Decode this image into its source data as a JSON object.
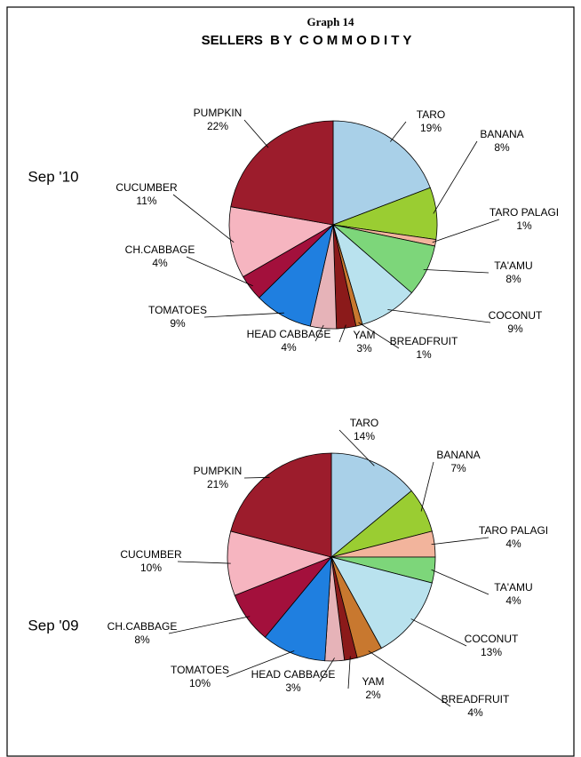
{
  "header": {
    "graph": "Graph 14",
    "title": "SELLERS  B Y  C O M M O D I T Y"
  },
  "chart_data": [
    {
      "type": "pie",
      "title": "Sep '10",
      "categories": [
        "TARO",
        "BANANA",
        "TARO PALAGI",
        "TA'AMU",
        "COCONUT",
        "BREADFRUIT",
        "YAM",
        "HEAD CABBAGE",
        "TOMATOES",
        "CH.CABBAGE",
        "CUCUMBER",
        "PUMPKIN"
      ],
      "values": [
        19,
        8,
        1,
        8,
        9,
        1,
        3,
        4,
        9,
        4,
        11,
        22
      ],
      "value_labels": [
        "19%",
        "8%",
        "1%",
        "8%",
        "9%",
        "1%",
        "3%",
        "4%",
        "9%",
        "4%",
        "11%",
        "22%"
      ],
      "colors": [
        "#a9d0e8",
        "#9acd32",
        "#f2b49c",
        "#7dd67a",
        "#b9e2ee",
        "#c8782f",
        "#8b1a1a",
        "#e6b3b8",
        "#1f7fe0",
        "#a3103c",
        "#f6b5c0",
        "#9c1c2c"
      ]
    },
    {
      "type": "pie",
      "title": "Sep '09",
      "categories": [
        "TARO",
        "BANANA",
        "TARO PALAGI",
        "TA'AMU",
        "COCONUT",
        "BREADFRUIT",
        "YAM",
        "HEAD CABBAGE",
        "TOMATOES",
        "CH.CABBAGE",
        "CUCUMBER",
        "PUMPKIN"
      ],
      "values": [
        14,
        7,
        4,
        4,
        13,
        4,
        2,
        3,
        10,
        8,
        10,
        21
      ],
      "value_labels": [
        "14%",
        "7%",
        "4%",
        "4%",
        "13%",
        "4%",
        "2%",
        "3%",
        "10%",
        "8%",
        "10%",
        "21%"
      ],
      "colors": [
        "#a9d0e8",
        "#9acd32",
        "#f2b49c",
        "#7dd67a",
        "#b9e2ee",
        "#c8782f",
        "#8b1a1a",
        "#e6b3b8",
        "#1f7fe0",
        "#a3103c",
        "#f6b5c0",
        "#9c1c2c"
      ]
    }
  ]
}
